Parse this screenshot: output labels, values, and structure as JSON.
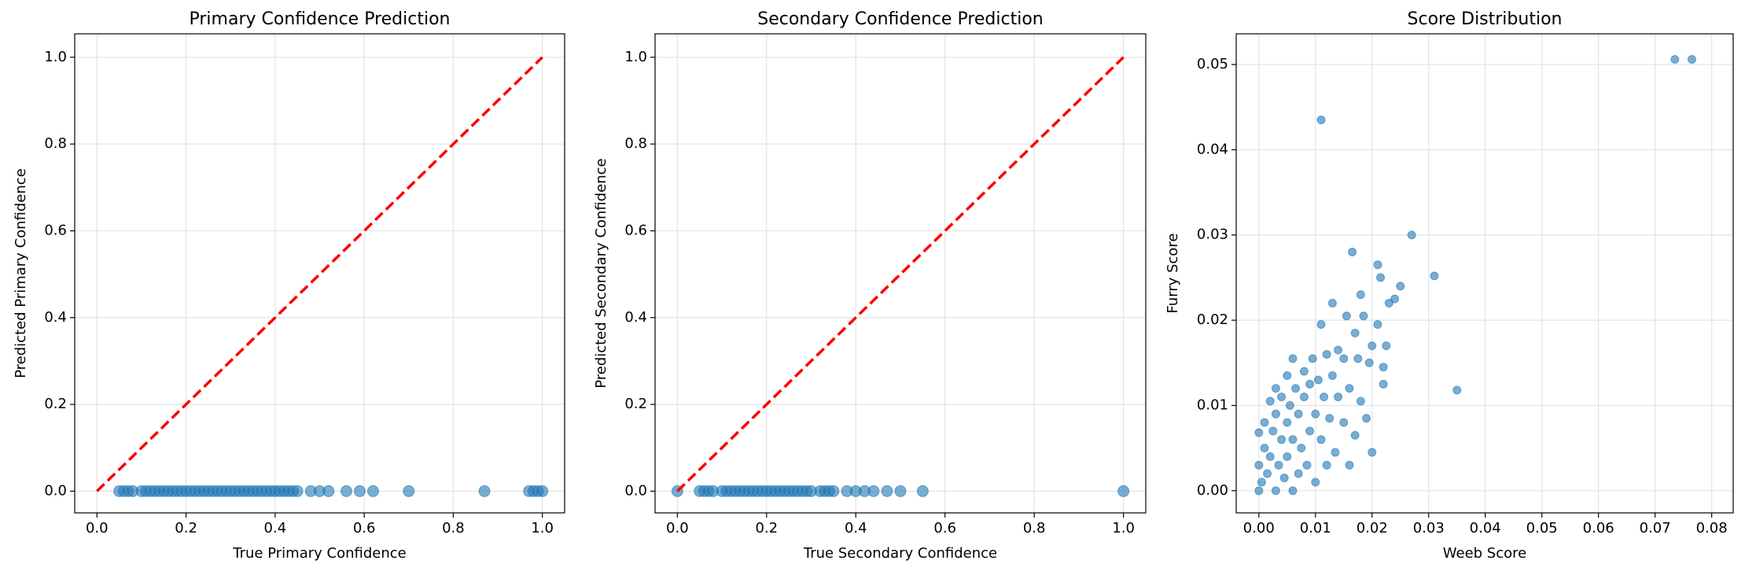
{
  "chart_data": [
    {
      "type": "scatter",
      "title": "Primary Confidence Prediction",
      "xlabel": "True Primary Confidence",
      "ylabel": "Predicted Primary Confidence",
      "color": "#1f77b4",
      "grid": true,
      "x": [
        0.05,
        0.06,
        0.07,
        0.08,
        0.1,
        0.11,
        0.12,
        0.13,
        0.14,
        0.15,
        0.16,
        0.17,
        0.18,
        0.19,
        0.2,
        0.21,
        0.22,
        0.23,
        0.24,
        0.25,
        0.26,
        0.27,
        0.28,
        0.29,
        0.3,
        0.31,
        0.32,
        0.33,
        0.34,
        0.35,
        0.36,
        0.37,
        0.38,
        0.39,
        0.4,
        0.41,
        0.42,
        0.43,
        0.44,
        0.45,
        0.48,
        0.5,
        0.52,
        0.56,
        0.59,
        0.62,
        0.7,
        0.87,
        0.97,
        0.98,
        0.99,
        1.0
      ],
      "y": [
        0,
        0,
        0,
        0,
        0,
        0,
        0,
        0,
        0,
        0,
        0,
        0,
        0,
        0,
        0,
        0,
        0,
        0,
        0,
        0,
        0,
        0,
        0,
        0,
        0,
        0,
        0,
        0,
        0,
        0,
        0,
        0,
        0,
        0,
        0,
        0,
        0,
        0,
        0,
        0,
        0,
        0,
        0,
        0,
        0,
        0,
        0,
        0,
        0,
        0,
        0,
        0
      ],
      "reference_line": {
        "x": [
          0,
          1
        ],
        "y": [
          0,
          1
        ],
        "color": "#ff0000"
      },
      "xlim": [
        -0.05,
        1.05
      ],
      "ylim": [
        -0.05,
        1.054
      ],
      "xticks": [
        {
          "value": 0,
          "label": "0.0"
        },
        0.2,
        0.4,
        0.6,
        0.8,
        {
          "value": 1,
          "label": "1.0"
        }
      ],
      "yticks": [
        {
          "value": 0,
          "label": "0.0"
        },
        0.2,
        0.4,
        0.6,
        0.8,
        {
          "value": 1,
          "label": "1.0"
        }
      ]
    },
    {
      "type": "scatter",
      "title": "Secondary Confidence Prediction",
      "xlabel": "True Secondary Confidence",
      "ylabel": "Predicted Secondary Confidence",
      "color": "#1f77b4",
      "grid": true,
      "x": [
        0,
        0.05,
        0.06,
        0.07,
        0.08,
        0.1,
        0.11,
        0.12,
        0.13,
        0.14,
        0.15,
        0.16,
        0.17,
        0.18,
        0.19,
        0.2,
        0.21,
        0.22,
        0.23,
        0.24,
        0.25,
        0.26,
        0.27,
        0.28,
        0.29,
        0.3,
        0.32,
        0.33,
        0.34,
        0.35,
        0.38,
        0.4,
        0.42,
        0.44,
        0.47,
        0.5,
        0.55,
        1.0
      ],
      "y": [
        0,
        0,
        0,
        0,
        0,
        0,
        0,
        0,
        0,
        0,
        0,
        0,
        0,
        0,
        0,
        0,
        0,
        0,
        0,
        0,
        0,
        0,
        0,
        0,
        0,
        0,
        0,
        0,
        0,
        0,
        0,
        0,
        0,
        0,
        0,
        0,
        0,
        0
      ],
      "reference_line": {
        "x": [
          0,
          1
        ],
        "y": [
          0,
          1
        ],
        "color": "#ff0000"
      },
      "xlim": [
        -0.05,
        1.05
      ],
      "ylim": [
        -0.05,
        1.054
      ],
      "xticks": [
        {
          "value": 0,
          "label": "0.0"
        },
        0.2,
        0.4,
        0.6,
        0.8,
        {
          "value": 1,
          "label": "1.0"
        }
      ],
      "yticks": [
        {
          "value": 0,
          "label": "0.0"
        },
        0.2,
        0.4,
        0.6,
        0.8,
        {
          "value": 1,
          "label": "1.0"
        }
      ]
    },
    {
      "type": "scatter",
      "title": "Score Distribution",
      "xlabel": "Weeb Score",
      "ylabel": "Furry Score",
      "color": "#1f77b4",
      "grid": true,
      "x": [
        0.0,
        0.0,
        0.0,
        0.0005,
        0.001,
        0.001,
        0.0015,
        0.002,
        0.002,
        0.0025,
        0.003,
        0.003,
        0.003,
        0.0035,
        0.004,
        0.004,
        0.0045,
        0.005,
        0.005,
        0.005,
        0.0055,
        0.006,
        0.006,
        0.006,
        0.0065,
        0.007,
        0.007,
        0.0075,
        0.008,
        0.008,
        0.0085,
        0.009,
        0.009,
        0.0095,
        0.01,
        0.01,
        0.0105,
        0.011,
        0.011,
        0.011,
        0.0115,
        0.012,
        0.012,
        0.0125,
        0.013,
        0.013,
        0.0135,
        0.014,
        0.014,
        0.015,
        0.015,
        0.0155,
        0.016,
        0.016,
        0.0165,
        0.017,
        0.017,
        0.0175,
        0.018,
        0.018,
        0.0185,
        0.019,
        0.0195,
        0.02,
        0.02,
        0.021,
        0.021,
        0.0215,
        0.022,
        0.022,
        0.0225,
        0.023,
        0.024,
        0.025,
        0.027,
        0.031,
        0.035,
        0.0735,
        0.0765
      ],
      "y": [
        0.0,
        0.003,
        0.0068,
        0.001,
        0.005,
        0.008,
        0.002,
        0.004,
        0.0105,
        0.007,
        0.0,
        0.009,
        0.012,
        0.003,
        0.006,
        0.011,
        0.0015,
        0.008,
        0.0135,
        0.004,
        0.01,
        0.0,
        0.006,
        0.0155,
        0.012,
        0.002,
        0.009,
        0.005,
        0.011,
        0.014,
        0.003,
        0.007,
        0.0125,
        0.0155,
        0.001,
        0.009,
        0.013,
        0.006,
        0.0435,
        0.0195,
        0.011,
        0.016,
        0.003,
        0.0085,
        0.0135,
        0.022,
        0.0045,
        0.011,
        0.0165,
        0.008,
        0.0155,
        0.0205,
        0.003,
        0.012,
        0.028,
        0.0185,
        0.0065,
        0.0155,
        0.0105,
        0.023,
        0.0205,
        0.0085,
        0.015,
        0.017,
        0.0045,
        0.0265,
        0.0195,
        0.025,
        0.0125,
        0.0145,
        0.017,
        0.022,
        0.0225,
        0.024,
        0.03,
        0.0252,
        0.0118,
        0.0506,
        0.0506
      ],
      "xlim": [
        -0.004,
        0.0838
      ],
      "ylim": [
        -0.0026,
        0.0536
      ],
      "xticks": [
        {
          "value": 0,
          "label": "0.00"
        },
        0.01,
        0.02,
        0.03,
        0.04,
        0.05,
        0.06,
        0.07,
        0.08
      ],
      "yticks": [
        {
          "value": 0,
          "label": "0.00"
        },
        0.01,
        0.02,
        0.03,
        0.04,
        0.05
      ]
    }
  ]
}
